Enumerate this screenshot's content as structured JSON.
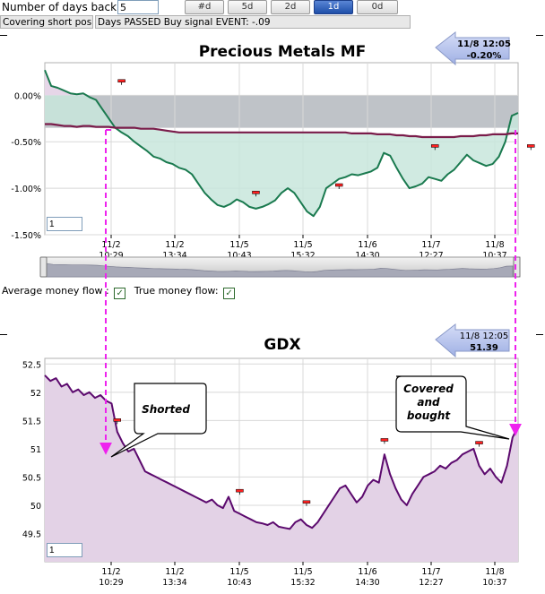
{
  "toolbar": {
    "days_label": "Number of days back:",
    "days_value": "5",
    "buttons": [
      "#d",
      "5d",
      "2d",
      "1d",
      "0d"
    ],
    "active_button": "1d"
  },
  "status": {
    "left": "Covering short positi",
    "right": "Days PASSED Buy signal EVENT: -.09"
  },
  "money_flow": {
    "average_label": "Average money flow :",
    "true_label": "True money flow:"
  },
  "colors": {
    "mf_line": "#1a7a4f",
    "mf_fill": "#c8e6dc",
    "avg_line": "#7a1c4a",
    "gdx_line": "#5c0a6e",
    "gdx_fill": "#e3d2e6",
    "arrow": "#ee22ee",
    "badge": "#aebbe8"
  },
  "chart_data": [
    {
      "type": "area",
      "title": "Precious Metals MF",
      "badge_time": "11/8 12:05",
      "badge_value": "-0.20%",
      "input_value": "1",
      "y_ticks": [
        "0.00%",
        "-0.50%",
        "-1.00%",
        "-1.50%"
      ],
      "y_tick_values": [
        0,
        -0.5,
        -1.0,
        -1.5
      ],
      "ylim": [
        -1.5,
        0.35
      ],
      "x_tick_labels": [
        [
          "11/2",
          "10:29"
        ],
        [
          "11/2",
          "13:34"
        ],
        [
          "11/5",
          "10:43"
        ],
        [
          "11/5",
          "15:32"
        ],
        [
          "11/6",
          "14:30"
        ],
        [
          "11/7",
          "12:27"
        ],
        [
          "11/8",
          "10:37"
        ]
      ],
      "series": [
        {
          "name": "True money flow",
          "values": [
            0.27,
            0.1,
            0.08,
            0.05,
            0.02,
            0.01,
            0.02,
            -0.02,
            -0.05,
            -0.15,
            -0.25,
            -0.35,
            -0.4,
            -0.44,
            -0.5,
            -0.55,
            -0.6,
            -0.66,
            -0.68,
            -0.72,
            -0.74,
            -0.78,
            -0.8,
            -0.85,
            -0.95,
            -1.05,
            -1.12,
            -1.18,
            -1.2,
            -1.17,
            -1.12,
            -1.15,
            -1.2,
            -1.22,
            -1.2,
            -1.17,
            -1.13,
            -1.05,
            -1.0,
            -1.05,
            -1.15,
            -1.25,
            -1.3,
            -1.2,
            -1.0,
            -0.95,
            -0.9,
            -0.88,
            -0.85,
            -0.86,
            -0.84,
            -0.82,
            -0.78,
            -0.62,
            -0.65,
            -0.78,
            -0.9,
            -1.0,
            -0.98,
            -0.95,
            -0.88,
            -0.9,
            -0.92,
            -0.85,
            -0.8,
            -0.72,
            -0.64,
            -0.7,
            -0.73,
            -0.76,
            -0.74,
            -0.66,
            -0.5,
            -0.22,
            -0.19
          ]
        },
        {
          "name": "Average money flow",
          "values": [
            -0.31,
            -0.31,
            -0.32,
            -0.33,
            -0.33,
            -0.34,
            -0.33,
            -0.33,
            -0.34,
            -0.34,
            -0.34,
            -0.35,
            -0.35,
            -0.35,
            -0.35,
            -0.36,
            -0.36,
            -0.36,
            -0.37,
            -0.38,
            -0.39,
            -0.4,
            -0.4,
            -0.4,
            -0.4,
            -0.4,
            -0.4,
            -0.4,
            -0.4,
            -0.4,
            -0.4,
            -0.4,
            -0.4,
            -0.4,
            -0.4,
            -0.4,
            -0.4,
            -0.4,
            -0.4,
            -0.4,
            -0.4,
            -0.4,
            -0.4,
            -0.4,
            -0.4,
            -0.4,
            -0.4,
            -0.4,
            -0.41,
            -0.41,
            -0.41,
            -0.41,
            -0.42,
            -0.42,
            -0.42,
            -0.43,
            -0.43,
            -0.44,
            -0.44,
            -0.45,
            -0.45,
            -0.45,
            -0.45,
            -0.45,
            -0.45,
            -0.44,
            -0.44,
            -0.44,
            -0.43,
            -0.43,
            -0.42,
            -0.42,
            -0.42,
            -0.41,
            -0.41
          ]
        }
      ],
      "markers": [
        {
          "i": 12,
          "value": 0.15
        },
        {
          "i": 33,
          "value": -1.05
        },
        {
          "i": 46,
          "value": -0.97
        },
        {
          "i": 61,
          "value": -0.55
        },
        {
          "i": 76,
          "value": -0.55
        }
      ]
    },
    {
      "type": "area",
      "title": "GDX",
      "badge_time": "11/8 12:05",
      "badge_value": "51.39",
      "input_value": "1",
      "y_ticks": [
        "52.5",
        "52",
        "51.5",
        "51",
        "50.5",
        "50",
        "49.5"
      ],
      "y_tick_values": [
        52.5,
        52,
        51.5,
        51,
        50.5,
        50,
        49.5
      ],
      "ylim": [
        49.0,
        52.6
      ],
      "x_tick_labels": [
        [
          "11/2",
          "10:29"
        ],
        [
          "11/2",
          "13:34"
        ],
        [
          "11/5",
          "10:43"
        ],
        [
          "11/5",
          "15:32"
        ],
        [
          "11/6",
          "14:30"
        ],
        [
          "11/7",
          "12:27"
        ],
        [
          "11/8",
          "10:37"
        ]
      ],
      "series": [
        {
          "name": "GDX",
          "values": [
            52.3,
            52.2,
            52.25,
            52.1,
            52.15,
            52.0,
            52.05,
            51.95,
            52.0,
            51.9,
            51.95,
            51.85,
            51.8,
            51.3,
            51.1,
            50.95,
            51.0,
            50.8,
            50.6,
            50.55,
            50.5,
            50.45,
            50.4,
            50.35,
            50.3,
            50.25,
            50.2,
            50.15,
            50.1,
            50.05,
            50.1,
            50.0,
            49.95,
            50.15,
            49.9,
            49.85,
            49.8,
            49.75,
            49.7,
            49.68,
            49.65,
            49.7,
            49.62,
            49.6,
            49.58,
            49.7,
            49.75,
            49.65,
            49.6,
            49.7,
            49.85,
            50.0,
            50.15,
            50.3,
            50.35,
            50.2,
            50.05,
            50.15,
            50.35,
            50.45,
            50.4,
            50.9,
            50.55,
            50.3,
            50.1,
            50.0,
            50.2,
            50.35,
            50.5,
            50.55,
            50.6,
            50.7,
            50.65,
            50.75,
            50.8,
            50.9,
            50.95,
            51.0,
            50.7,
            50.55,
            50.65,
            50.5,
            50.4,
            50.7,
            51.2,
            51.4
          ],
          "x_index_max": 85
        }
      ],
      "markers": [
        {
          "i": 13,
          "value": 51.5
        },
        {
          "i": 35,
          "value": 50.25
        },
        {
          "i": 47,
          "value": 50.05
        },
        {
          "i": 61,
          "value": 51.15
        },
        {
          "i": 78,
          "value": 51.1
        }
      ],
      "annotations": [
        {
          "text_lines": [
            "Shorted"
          ]
        },
        {
          "text_lines": [
            "Covered",
            "and",
            "bought"
          ]
        }
      ]
    }
  ]
}
